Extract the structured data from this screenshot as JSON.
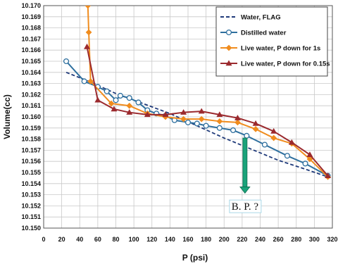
{
  "chart_data": {
    "type": "line",
    "xlabel": "P (psi)",
    "ylabel": "Volume(cc)",
    "xlim": [
      0,
      320
    ],
    "ylim": [
      10.15,
      10.17
    ],
    "x_ticks": [
      "0",
      "20",
      "40",
      "60",
      "80",
      "100",
      "120",
      "140",
      "160",
      "180",
      "200",
      "220",
      "240",
      "260",
      "280",
      "300",
      "320"
    ],
    "y_ticks": [
      "10.150",
      "10.151",
      "10.152",
      "10.153",
      "10.154",
      "10.155",
      "10.156",
      "10.157",
      "10.158",
      "10.159",
      "10.160",
      "10.161",
      "10.162",
      "10.163",
      "10.164",
      "10.165",
      "10.166",
      "10.167",
      "10.168",
      "10.169",
      "10.170"
    ],
    "grid": true,
    "legend_position": "top-right",
    "series": [
      {
        "name": "Water, FLAG",
        "color": "#1f3a7a",
        "style": "dashed",
        "marker": "none",
        "x": [
          25,
          50,
          80,
          110,
          140,
          170,
          200,
          230,
          260,
          290,
          315
        ],
        "y": [
          10.164,
          10.1632,
          10.1621,
          10.1612,
          10.1603,
          10.1592,
          10.1581,
          10.1571,
          10.1561,
          10.1553,
          10.1546
        ]
      },
      {
        "name": "Distilled water",
        "color": "#2e6f9e",
        "style": "solid",
        "marker": "circle",
        "x": [
          25,
          45,
          60,
          70,
          80,
          85,
          95,
          105,
          115,
          125,
          135,
          145,
          160,
          170,
          180,
          195,
          210,
          225,
          245,
          270,
          290,
          315
        ],
        "y": [
          10.165,
          10.1632,
          10.1627,
          10.1623,
          10.1615,
          10.1619,
          10.1617,
          10.1613,
          10.1606,
          10.1603,
          10.1601,
          10.1597,
          10.1595,
          10.1594,
          10.1592,
          10.159,
          10.1588,
          10.1583,
          10.1575,
          10.1565,
          10.1558,
          10.1547
        ]
      },
      {
        "name": "Live water, P down for 1s",
        "color": "#f08c1e",
        "style": "solid",
        "marker": "diamond",
        "x": [
          49,
          50,
          52,
          75,
          95,
          115,
          135,
          155,
          175,
          195,
          215,
          235,
          255,
          275,
          295,
          315
        ],
        "y": [
          10.17,
          10.1676,
          10.1632,
          10.1612,
          10.161,
          10.1603,
          10.16,
          10.1598,
          10.1598,
          10.1596,
          10.1595,
          10.1589,
          10.1581,
          10.1576,
          10.1562,
          10.1546
        ]
      },
      {
        "name": "Live water, P down for 0.15s",
        "color": "#9b2a2e",
        "style": "solid",
        "marker": "triangle",
        "x": [
          48,
          60,
          78,
          95,
          115,
          135,
          155,
          175,
          195,
          215,
          235,
          255,
          275,
          295,
          315
        ],
        "y": [
          10.1663,
          10.1615,
          10.1607,
          10.1604,
          10.1602,
          10.1602,
          10.1604,
          10.1605,
          10.1602,
          10.1599,
          10.1594,
          10.1587,
          10.1577,
          10.1566,
          10.1547
        ]
      }
    ],
    "annotation": {
      "text": "B. P. ?",
      "x": 220,
      "arrow_from_y": 10.1581,
      "arrow_to_y": 10.1532,
      "text_y": 10.1517
    }
  }
}
